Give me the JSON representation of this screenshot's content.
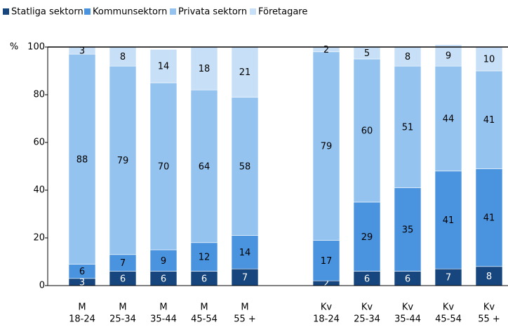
{
  "chart_data": {
    "type": "stacked_bar",
    "ylabel": "%",
    "categories": [
      [
        "M",
        "18-24"
      ],
      [
        "M",
        "25-34"
      ],
      [
        "M",
        "35-44"
      ],
      [
        "M",
        "45-54"
      ],
      [
        "M",
        "55 +"
      ],
      null,
      [
        "Kv",
        "18-24"
      ],
      [
        "Kv",
        "25-34"
      ],
      [
        "Kv",
        "35-44"
      ],
      [
        "Kv",
        "45-54"
      ],
      [
        "Kv",
        "55 +"
      ]
    ],
    "series": [
      {
        "name": "Statliga sektorn",
        "color": "#17467e",
        "values": [
          3,
          6,
          6,
          6,
          7,
          null,
          2,
          6,
          6,
          7,
          8
        ]
      },
      {
        "name": "Kommunsektorn",
        "color": "#4a93de",
        "values": [
          6,
          7,
          9,
          12,
          14,
          null,
          17,
          29,
          35,
          41,
          41
        ]
      },
      {
        "name": "Privata sektorn",
        "color": "#93c3ee",
        "values": [
          88,
          79,
          70,
          64,
          58,
          null,
          79,
          60,
          51,
          44,
          41
        ]
      },
      {
        "name": "Företagare",
        "color": "#c8e0f7",
        "values": [
          3,
          8,
          14,
          18,
          21,
          null,
          2,
          5,
          8,
          9,
          10
        ]
      }
    ],
    "ylim": [
      0,
      100
    ],
    "yticks": [
      0,
      20,
      40,
      60,
      80,
      100
    ],
    "legend": "top"
  }
}
